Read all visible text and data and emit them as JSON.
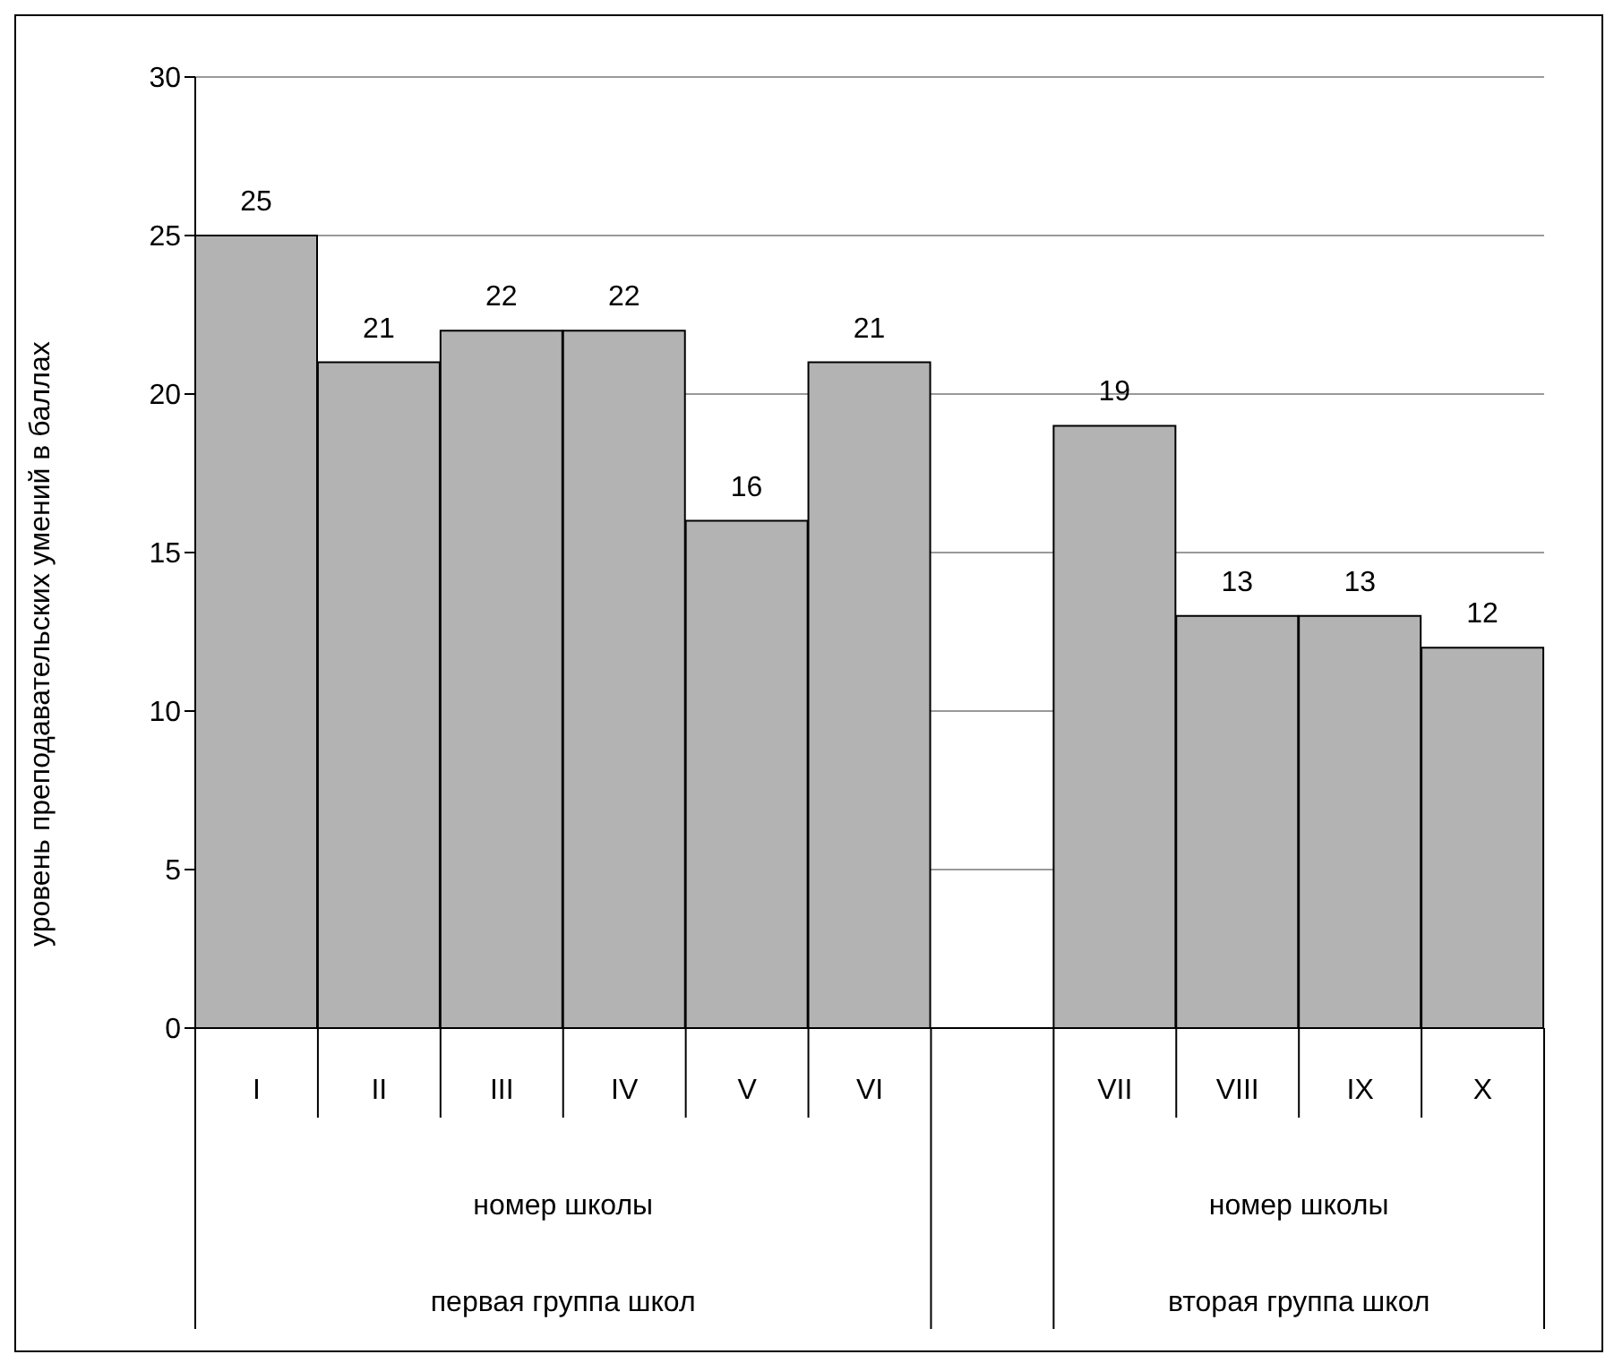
{
  "chart_data": {
    "type": "bar",
    "ylabel": "уровень преподавательских умений в баллах",
    "categories": [
      "I",
      "II",
      "III",
      "IV",
      "V",
      "VI",
      null,
      "VII",
      "VIII",
      "IX",
      "X"
    ],
    "values": [
      25,
      21,
      22,
      22,
      16,
      21,
      null,
      19,
      13,
      13,
      12
    ],
    "color": "#b3b3b3",
    "ylim": [
      0,
      30
    ],
    "yticks": [
      0,
      5,
      10,
      15,
      20,
      25,
      30
    ],
    "grid": "y",
    "legend": false,
    "data_labels": true,
    "annotations": [
      "номер школы",
      "первая группа школ",
      "номер школы",
      "вторая группа школ"
    ]
  }
}
